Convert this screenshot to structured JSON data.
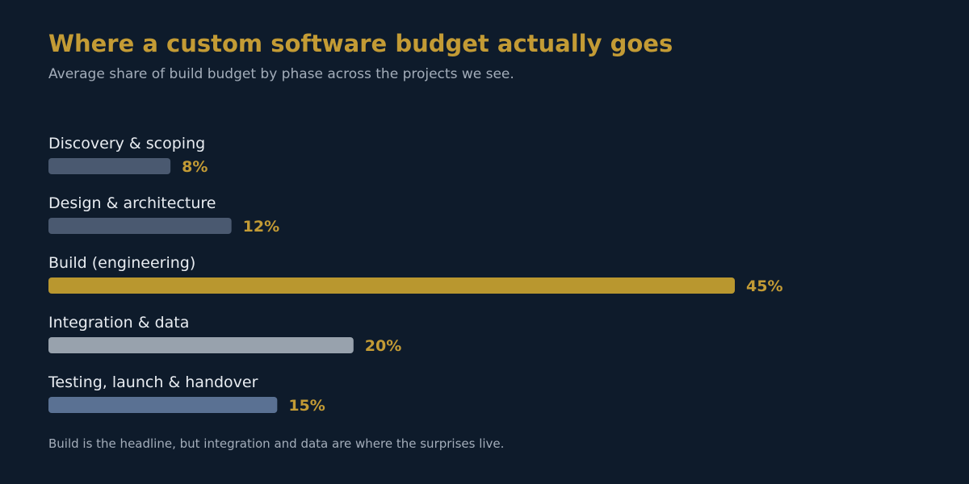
{
  "title": "Where a custom software budget actually goes",
  "subtitle": "Average share of build budget by phase across the projects we see.",
  "footnote": "Build is the headline, but integration and data are where the surprises live.",
  "colors": {
    "background": "#0e1b2b",
    "title": "#c39b35",
    "subtitle": "#a3adba",
    "category_label": "#e8ecf1",
    "value_label": "#c39b35",
    "footnote": "#a3adba"
  },
  "chart_data": {
    "type": "bar",
    "orientation": "horizontal",
    "categories": [
      "Discovery & scoping",
      "Design & architecture",
      "Build (engineering)",
      "Integration & data",
      "Testing, launch & handover"
    ],
    "values": [
      8,
      12,
      45,
      20,
      15
    ],
    "value_labels": [
      "8%",
      "12%",
      "45%",
      "20%",
      "15%"
    ],
    "bar_colors": [
      "#4a5970",
      "#4a5970",
      "#b9972f",
      "#98a2ad",
      "#5a7193"
    ],
    "unit": "%",
    "xlim": [
      0,
      45
    ],
    "grid": false,
    "legend": "none"
  }
}
